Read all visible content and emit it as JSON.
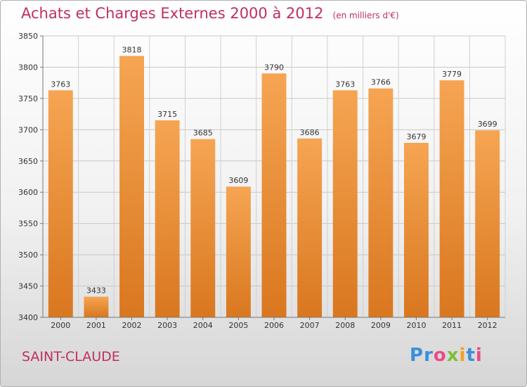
{
  "header": {
    "title": "Achats et Charges Externes 2000 à 2012",
    "unit": "(en milliers d'€)"
  },
  "footer": {
    "place": "SAINT-CLAUDE",
    "brand": "Proxiti"
  },
  "colors": {
    "title": "#c0305c",
    "bar_top": "#f6a553",
    "bar_bottom": "#d9771f",
    "logo": [
      "#3b8fd8",
      "#3b8fd8",
      "#e94b8a",
      "#7bbf3a",
      "#f2a321",
      "#3b8fd8",
      "#e94b8a"
    ]
  },
  "chart_data": {
    "type": "bar",
    "title": "Achats et Charges Externes 2000 à 2012",
    "subtitle": "(en milliers d'€)",
    "xlabel": "",
    "ylabel": "",
    "categories": [
      "2000",
      "2001",
      "2002",
      "2003",
      "2004",
      "2005",
      "2006",
      "2007",
      "2008",
      "2009",
      "2010",
      "2011",
      "2012"
    ],
    "values": [
      3763,
      3433,
      3818,
      3715,
      3685,
      3609,
      3790,
      3686,
      3763,
      3766,
      3679,
      3779,
      3699
    ],
    "ylim": [
      3400,
      3850
    ],
    "yticks": [
      3400,
      3450,
      3500,
      3550,
      3600,
      3650,
      3700,
      3750,
      3800,
      3850
    ],
    "grid": true,
    "legend": "none"
  }
}
